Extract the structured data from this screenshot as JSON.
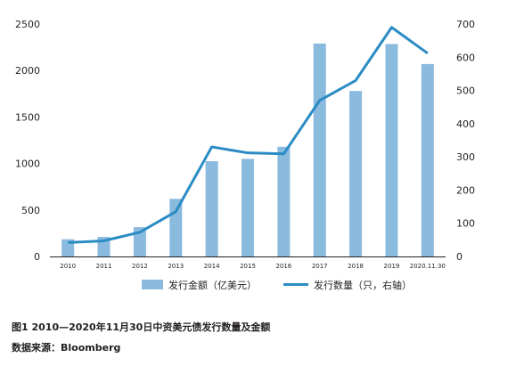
{
  "chart_data": {
    "type": "bar",
    "categories": [
      "2010",
      "2011",
      "2012",
      "2013",
      "2014",
      "2015",
      "2016",
      "2017",
      "2018",
      "2019",
      "2020.11.30"
    ],
    "series": [
      {
        "name": "发行金额（亿美元）",
        "type": "bar",
        "axis": "left",
        "color": "#8bbadf",
        "values": [
          185,
          210,
          315,
          620,
          1025,
          1050,
          1180,
          2290,
          1780,
          2285,
          2070
        ]
      },
      {
        "name": "发行数量（只，右轴）",
        "type": "line",
        "axis": "right",
        "color": "#2b8cc4",
        "values": [
          42,
          47,
          73,
          135,
          330,
          312,
          309,
          470,
          530,
          690,
          612
        ]
      }
    ],
    "y_left": {
      "min": 0,
      "max": 2500,
      "ticks": [
        0,
        500,
        1000,
        1500,
        2000,
        2500
      ]
    },
    "y_right": {
      "min": 0,
      "max": 700,
      "ticks": [
        0,
        100,
        200,
        300,
        400,
        500,
        600,
        700
      ]
    },
    "grid": false,
    "legend_position": "bottom"
  },
  "caption": {
    "title": "图1  2010—2020年11月30日中资美元债发行数量及金额",
    "source": "数据来源：Bloomberg"
  }
}
